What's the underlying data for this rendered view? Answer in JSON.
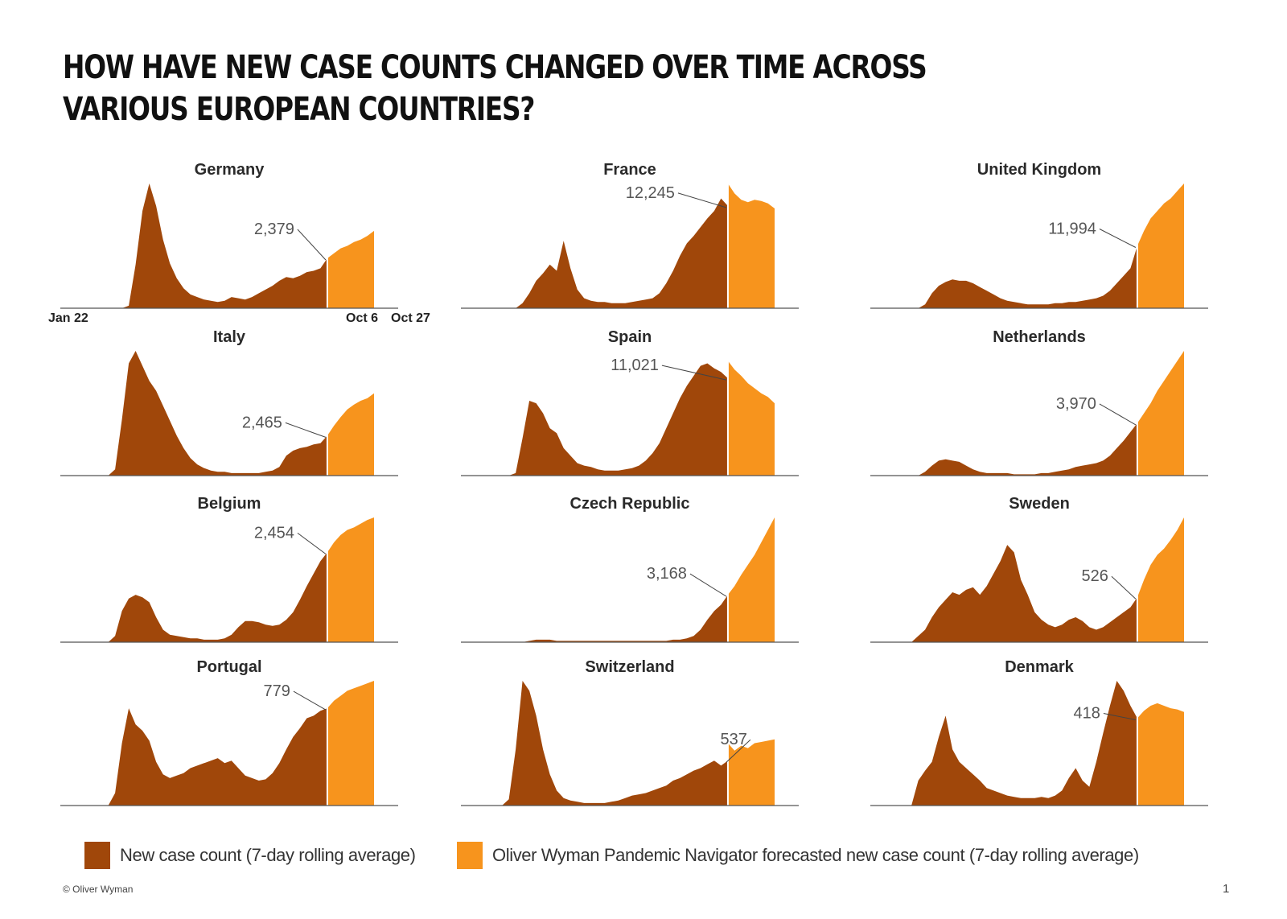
{
  "title": "HOW HAVE NEW CASE COUNTS CHANGED OVER TIME ACROSS VARIOUS EUROPEAN COUNTRIES?",
  "colors": {
    "actual": "#a0470a",
    "forecast": "#f7941d",
    "baseline": "#555555"
  },
  "dates": {
    "start": "Jan 22",
    "latest": "Oct 6",
    "end": "Oct 27"
  },
  "legend": {
    "actual": "New case count (7-day rolling average)",
    "forecast": "Oliver Wyman Pandemic Navigator forecasted new case count (7-day rolling average)"
  },
  "footer": {
    "copyright": "© Oliver Wyman",
    "page": "1"
  },
  "chart_data": [
    {
      "type": "area",
      "title": "Germany",
      "latest_label": "2,379",
      "actual_points": 40,
      "forecast_points": 8,
      "actual": [
        0,
        0,
        0,
        0,
        0,
        0,
        0,
        0,
        0,
        0,
        0.02,
        0.35,
        0.78,
        1.0,
        0.82,
        0.55,
        0.36,
        0.24,
        0.16,
        0.11,
        0.09,
        0.07,
        0.06,
        0.05,
        0.06,
        0.09,
        0.08,
        0.07,
        0.09,
        0.12,
        0.15,
        0.18,
        0.22,
        0.25,
        0.24,
        0.26,
        0.29,
        0.3,
        0.32,
        0.4
      ],
      "forecast": [
        0.4,
        0.44,
        0.48,
        0.5,
        0.53,
        0.55,
        0.58,
        0.62
      ]
    },
    {
      "type": "area",
      "title": "France",
      "latest_label": "12,245",
      "actual_points": 40,
      "forecast_points": 8,
      "actual": [
        0,
        0,
        0,
        0,
        0,
        0,
        0,
        0,
        0,
        0.04,
        0.12,
        0.22,
        0.28,
        0.35,
        0.3,
        0.54,
        0.32,
        0.15,
        0.08,
        0.06,
        0.05,
        0.05,
        0.04,
        0.04,
        0.04,
        0.05,
        0.06,
        0.07,
        0.08,
        0.12,
        0.2,
        0.3,
        0.42,
        0.52,
        0.58,
        0.65,
        0.72,
        0.78,
        0.88,
        0.82
      ],
      "forecast": [
        1.0,
        0.92,
        0.87,
        0.85,
        0.87,
        0.86,
        0.84,
        0.8
      ]
    },
    {
      "type": "area",
      "title": "United Kingdom",
      "latest_label": "11,994",
      "actual_points": 40,
      "forecast_points": 8,
      "actual": [
        0,
        0,
        0,
        0,
        0,
        0,
        0,
        0,
        0.03,
        0.12,
        0.18,
        0.21,
        0.23,
        0.22,
        0.22,
        0.2,
        0.17,
        0.14,
        0.11,
        0.08,
        0.06,
        0.05,
        0.04,
        0.03,
        0.03,
        0.03,
        0.03,
        0.04,
        0.04,
        0.05,
        0.05,
        0.06,
        0.07,
        0.08,
        0.1,
        0.14,
        0.2,
        0.26,
        0.32,
        0.5
      ],
      "forecast": [
        0.5,
        0.62,
        0.72,
        0.78,
        0.84,
        0.88,
        0.94,
        1.0
      ]
    },
    {
      "type": "area",
      "title": "Italy",
      "latest_label": "2,465",
      "actual_points": 40,
      "forecast_points": 8,
      "actual": [
        0,
        0,
        0,
        0,
        0,
        0,
        0,
        0,
        0.05,
        0.45,
        0.9,
        1.0,
        0.88,
        0.76,
        0.68,
        0.56,
        0.44,
        0.32,
        0.22,
        0.14,
        0.09,
        0.06,
        0.04,
        0.03,
        0.03,
        0.02,
        0.02,
        0.02,
        0.02,
        0.02,
        0.03,
        0.04,
        0.07,
        0.16,
        0.2,
        0.22,
        0.23,
        0.25,
        0.26,
        0.32
      ],
      "forecast": [
        0.32,
        0.4,
        0.47,
        0.53,
        0.57,
        0.6,
        0.62,
        0.66
      ]
    },
    {
      "type": "area",
      "title": "Spain",
      "latest_label": "11,021",
      "actual_points": 40,
      "forecast_points": 8,
      "actual": [
        0,
        0,
        0,
        0,
        0,
        0,
        0,
        0,
        0.02,
        0.3,
        0.6,
        0.58,
        0.5,
        0.38,
        0.34,
        0.22,
        0.16,
        0.1,
        0.08,
        0.07,
        0.05,
        0.04,
        0.04,
        0.04,
        0.05,
        0.06,
        0.08,
        0.12,
        0.18,
        0.26,
        0.38,
        0.5,
        0.62,
        0.72,
        0.8,
        0.88,
        0.9,
        0.86,
        0.83,
        0.78
      ],
      "forecast": [
        0.92,
        0.85,
        0.8,
        0.74,
        0.7,
        0.66,
        0.63,
        0.58
      ]
    },
    {
      "type": "area",
      "title": "Netherlands",
      "latest_label": "3,970",
      "actual_points": 40,
      "forecast_points": 8,
      "actual": [
        0,
        0,
        0,
        0,
        0,
        0,
        0,
        0,
        0.03,
        0.08,
        0.12,
        0.13,
        0.12,
        0.11,
        0.08,
        0.05,
        0.03,
        0.02,
        0.02,
        0.02,
        0.02,
        0.01,
        0.01,
        0.01,
        0.01,
        0.02,
        0.02,
        0.03,
        0.04,
        0.05,
        0.07,
        0.08,
        0.09,
        0.1,
        0.12,
        0.16,
        0.22,
        0.28,
        0.35,
        0.42
      ],
      "forecast": [
        0.42,
        0.5,
        0.58,
        0.68,
        0.76,
        0.84,
        0.92,
        1.0
      ]
    },
    {
      "type": "area",
      "title": "Belgium",
      "latest_label": "2,454",
      "actual_points": 40,
      "forecast_points": 8,
      "actual": [
        0,
        0,
        0,
        0,
        0,
        0,
        0,
        0,
        0.05,
        0.25,
        0.35,
        0.38,
        0.36,
        0.32,
        0.2,
        0.1,
        0.06,
        0.05,
        0.04,
        0.03,
        0.03,
        0.02,
        0.02,
        0.02,
        0.03,
        0.06,
        0.12,
        0.17,
        0.17,
        0.16,
        0.14,
        0.13,
        0.14,
        0.18,
        0.24,
        0.34,
        0.45,
        0.55,
        0.65,
        0.72
      ],
      "forecast": [
        0.72,
        0.8,
        0.86,
        0.9,
        0.92,
        0.95,
        0.98,
        1.0
      ]
    },
    {
      "type": "area",
      "title": "Czech Republic",
      "latest_label": "3,168",
      "actual_points": 40,
      "forecast_points": 8,
      "actual": [
        0,
        0,
        0,
        0,
        0,
        0,
        0,
        0,
        0,
        0,
        0.01,
        0.02,
        0.02,
        0.02,
        0.01,
        0.01,
        0.01,
        0.01,
        0.01,
        0.01,
        0.01,
        0.01,
        0.01,
        0.01,
        0.01,
        0.01,
        0.01,
        0.01,
        0.01,
        0.01,
        0.01,
        0.02,
        0.02,
        0.03,
        0.05,
        0.1,
        0.18,
        0.25,
        0.3,
        0.38
      ],
      "forecast": [
        0.38,
        0.45,
        0.54,
        0.62,
        0.7,
        0.8,
        0.9,
        1.0
      ]
    },
    {
      "type": "area",
      "title": "Sweden",
      "latest_label": "526",
      "actual_points": 40,
      "forecast_points": 8,
      "actual": [
        0,
        0,
        0,
        0,
        0,
        0,
        0,
        0.05,
        0.1,
        0.2,
        0.28,
        0.34,
        0.4,
        0.38,
        0.42,
        0.44,
        0.38,
        0.45,
        0.55,
        0.65,
        0.78,
        0.72,
        0.5,
        0.38,
        0.24,
        0.18,
        0.14,
        0.12,
        0.14,
        0.18,
        0.2,
        0.17,
        0.12,
        0.1,
        0.12,
        0.16,
        0.2,
        0.24,
        0.28,
        0.36
      ],
      "forecast": [
        0.36,
        0.5,
        0.62,
        0.7,
        0.75,
        0.82,
        0.9,
        1.0
      ]
    },
    {
      "type": "area",
      "title": "Portugal",
      "latest_label": "779",
      "actual_points": 40,
      "forecast_points": 8,
      "actual": [
        0,
        0,
        0,
        0,
        0,
        0,
        0,
        0,
        0.1,
        0.5,
        0.78,
        0.65,
        0.6,
        0.52,
        0.35,
        0.25,
        0.22,
        0.24,
        0.26,
        0.3,
        0.32,
        0.34,
        0.36,
        0.38,
        0.34,
        0.36,
        0.3,
        0.24,
        0.22,
        0.2,
        0.21,
        0.26,
        0.34,
        0.45,
        0.55,
        0.62,
        0.7,
        0.72,
        0.76,
        0.78
      ],
      "forecast": [
        0.78,
        0.84,
        0.88,
        0.92,
        0.94,
        0.96,
        0.98,
        1.0
      ]
    },
    {
      "type": "area",
      "title": "Switzerland",
      "latest_label": "537",
      "actual_points": 40,
      "forecast_points": 8,
      "actual": [
        0,
        0,
        0,
        0,
        0,
        0,
        0,
        0.05,
        0.45,
        1.0,
        0.92,
        0.72,
        0.45,
        0.25,
        0.12,
        0.06,
        0.04,
        0.03,
        0.02,
        0.02,
        0.02,
        0.02,
        0.03,
        0.04,
        0.06,
        0.08,
        0.09,
        0.1,
        0.12,
        0.14,
        0.16,
        0.2,
        0.22,
        0.25,
        0.28,
        0.3,
        0.33,
        0.36,
        0.32,
        0.36
      ],
      "forecast": [
        0.5,
        0.44,
        0.48,
        0.46,
        0.5,
        0.51,
        0.52,
        0.53
      ]
    },
    {
      "type": "area",
      "title": "Denmark",
      "latest_label": "418",
      "actual_points": 40,
      "forecast_points": 8,
      "actual": [
        0,
        0,
        0,
        0,
        0,
        0,
        0,
        0.2,
        0.28,
        0.35,
        0.55,
        0.72,
        0.45,
        0.35,
        0.3,
        0.25,
        0.2,
        0.14,
        0.12,
        0.1,
        0.08,
        0.07,
        0.06,
        0.06,
        0.06,
        0.07,
        0.06,
        0.08,
        0.12,
        0.22,
        0.3,
        0.2,
        0.15,
        0.35,
        0.58,
        0.8,
        1.0,
        0.92,
        0.8,
        0.7
      ],
      "forecast": [
        0.7,
        0.76,
        0.8,
        0.82,
        0.8,
        0.78,
        0.77,
        0.75
      ]
    }
  ]
}
